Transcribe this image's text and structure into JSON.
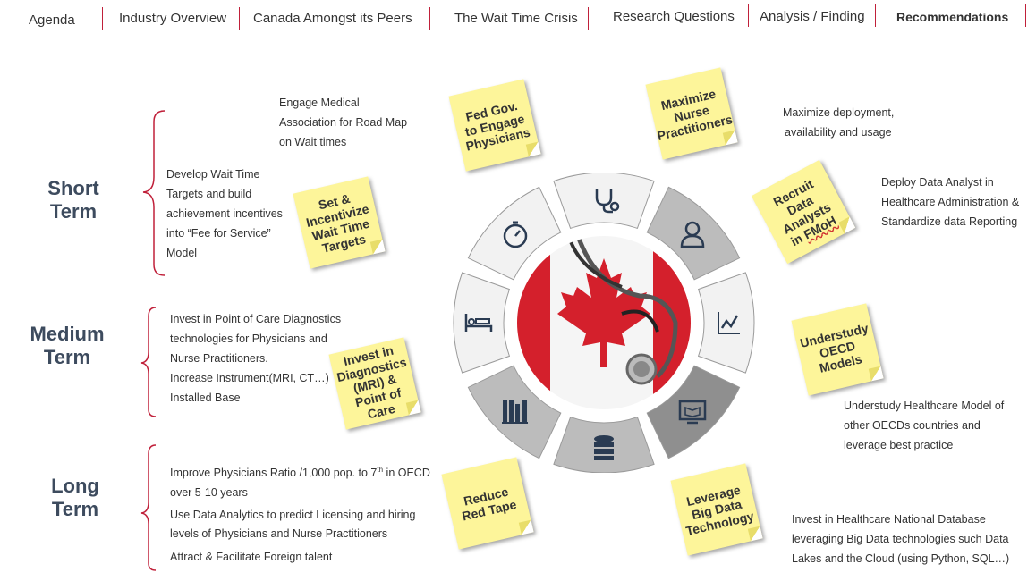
{
  "nav": {
    "items": [
      "Agenda",
      "Industry Overview",
      "Canada Amongst its Peers",
      "The Wait Time Crisis",
      "Research Questions",
      "Analysis / Finding",
      "Recommendations"
    ],
    "active": "Recommendations"
  },
  "terms": {
    "short": "Short Term",
    "medium_1": "Medium",
    "medium_2": "Term",
    "long": "Long Term"
  },
  "short_text": {
    "engage_1": "Engage Medical",
    "engage_2": "Association for Road Map",
    "engage_3": "on Wait times",
    "develop_1": "Develop Wait Time",
    "develop_2": "Targets and build",
    "develop_3": "achievement incentives",
    "develop_4": "into “Fee for Service”",
    "develop_5": "Model"
  },
  "medium_text": {
    "l1": "Invest in Point of Care Diagnostics",
    "l2": "technologies for Physicians and",
    "l3": "Nurse Practitioners.",
    "l4": "Increase Instrument(MRI, CT…)",
    "l5": "Installed Base"
  },
  "long_text": {
    "l1_a": "Improve Physicians Ratio /1,000 pop. to 7",
    "l1_sup": "th",
    "l1_b": " in OECD",
    "l2": "over 5-10 years",
    "l3": "Use Data Analytics  to predict Licensing and hiring",
    "l4": "levels of Physicians and Nurse Practitioners",
    "l5": "Attract & Facilitate Foreign talent"
  },
  "right_text": {
    "maximize_1": "Maximize deployment,",
    "maximize_2": "availability and usage",
    "deploy_1": "Deploy Data Analyst  in",
    "deploy_2": "Healthcare Administration &",
    "deploy_3": "Standardize data Reporting",
    "oecd_1": "Understudy Healthcare Model of",
    "oecd_2": "other OECDs countries and",
    "oecd_3": "leverage best practice",
    "invest_1": "Invest in Healthcare National Database",
    "invest_2": "leveraging  Big Data technologies such Data",
    "invest_3": "Lakes and the Cloud (using Python, SQL…)"
  },
  "notes": {
    "fed": "Fed Gov. to Engage Physicians",
    "set": "Set & Incentivize Wait Time Targets",
    "maximize": "Maximize Nurse Practitioners",
    "recruit_a": "Recruit Data Analysts in",
    "recruit_b": "FMoH",
    "oecd": "Understudy OECD Models",
    "invest": "Invest in Diagnostics (MRI) & Point of Care",
    "reduce": "Reduce Red Tape",
    "leverage": "Leverage Big Data Technology"
  },
  "colors": {
    "accent": "#c0203a",
    "term_text": "#3d4b5e",
    "note_yellow": "#fdf59a",
    "segment_light": "#f2f2f2",
    "segment_mid": "#bcbcbc",
    "segment_dark": "#8f8f8f",
    "flag_red": "#d4202c"
  },
  "icons": [
    "stethoscope-icon",
    "doctor-icon",
    "chart-icon",
    "book-monitor-icon",
    "database-icon",
    "books-icon",
    "hospital-bed-icon",
    "stopwatch-icon"
  ]
}
